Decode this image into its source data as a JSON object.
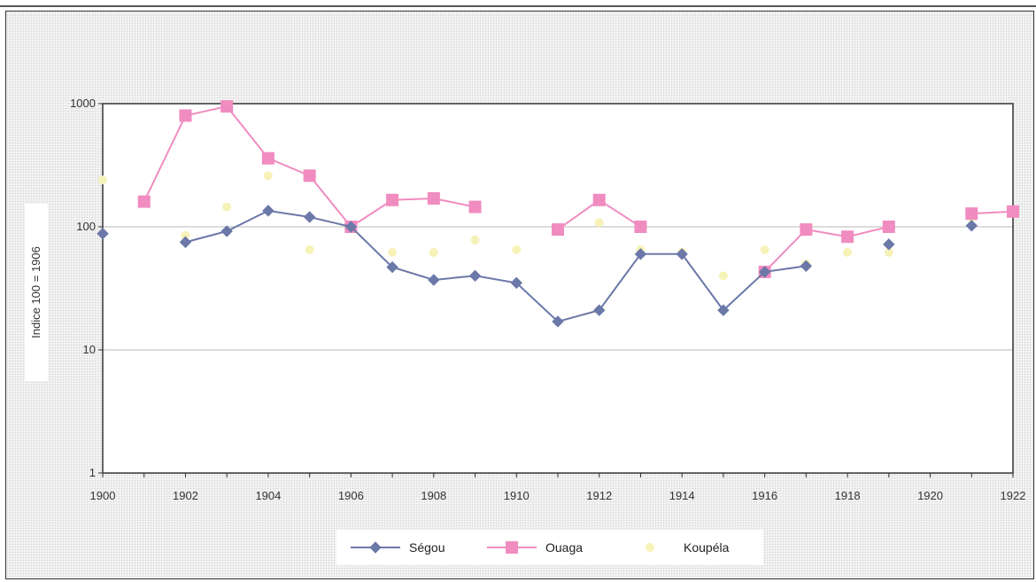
{
  "chart_data": {
    "type": "line",
    "ylabel": "Indice 100 = 1906",
    "xlabel": "",
    "y_scale": "log",
    "ylim": [
      1,
      1000
    ],
    "xlim": [
      1900,
      1922
    ],
    "x_ticks": [
      "1900",
      "1902",
      "1904",
      "1906",
      "1908",
      "1910",
      "1912",
      "1914",
      "1916",
      "1918",
      "1920",
      "1922"
    ],
    "y_ticks": [
      "1",
      "10",
      "100",
      "1000"
    ],
    "grid": "horizontal",
    "legend_position": "bottom",
    "x": [
      1900,
      1901,
      1902,
      1903,
      1904,
      1905,
      1906,
      1907,
      1908,
      1909,
      1910,
      1911,
      1912,
      1913,
      1914,
      1915,
      1916,
      1917,
      1918,
      1919,
      1920,
      1921,
      1922
    ],
    "series": [
      {
        "name": "Ségou",
        "color": "#6b78a8",
        "marker": "diamond",
        "values": [
          88,
          null,
          75,
          92,
          135,
          120,
          100,
          47,
          37,
          40,
          35,
          17,
          21,
          60,
          60,
          21,
          43,
          48,
          null,
          72,
          null,
          102,
          null
        ]
      },
      {
        "name": "Ouaga",
        "color": "#f08cc0",
        "marker": "square",
        "values": [
          null,
          160,
          800,
          950,
          360,
          260,
          100,
          165,
          170,
          145,
          null,
          95,
          165,
          100,
          null,
          null,
          43,
          95,
          83,
          100,
          null,
          128,
          133
        ]
      },
      {
        "name": "Koupéla",
        "color": "#f6f2b8",
        "marker": "circle",
        "values": [
          240,
          null,
          85,
          145,
          260,
          65,
          100,
          62,
          62,
          78,
          65,
          null,
          108,
          65,
          62,
          40,
          65,
          50,
          62,
          62,
          null,
          118,
          null
        ]
      }
    ]
  }
}
